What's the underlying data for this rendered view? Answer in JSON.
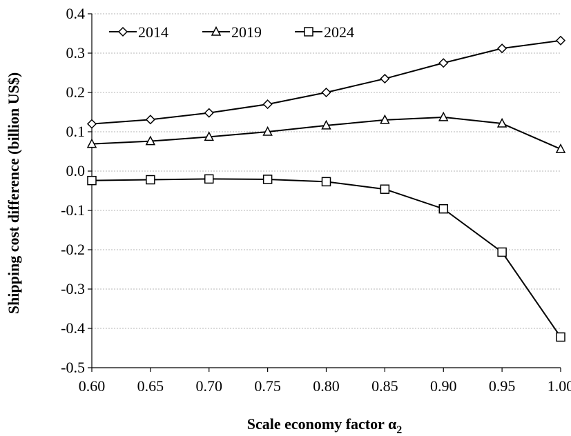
{
  "chart_data": {
    "type": "line",
    "xlabel": "Scale economy factor α",
    "xlabel_sub": "2",
    "ylabel": "Shipping cost difference (billion US$)",
    "xlim": [
      0.6,
      1.0
    ],
    "ylim": [
      -0.5,
      0.4
    ],
    "x_ticks": [
      "0.60",
      "0.65",
      "0.70",
      "0.75",
      "0.80",
      "0.85",
      "0.90",
      "0.95",
      "1.00"
    ],
    "y_ticks": [
      "-0.5",
      "-0.4",
      "-0.3",
      "-0.2",
      "-0.1",
      "0.0",
      "0.1",
      "0.2",
      "0.3",
      "0.4"
    ],
    "grid": "horizontal",
    "legend": "top-left",
    "x": [
      0.6,
      0.65,
      0.7,
      0.75,
      0.8,
      0.85,
      0.9,
      0.95,
      1.0
    ],
    "series": [
      {
        "name": "2014",
        "marker": "diamond",
        "values": [
          0.12,
          0.131,
          0.148,
          0.17,
          0.2,
          0.235,
          0.275,
          0.312,
          0.332
        ]
      },
      {
        "name": "2019",
        "marker": "triangle",
        "values": [
          0.069,
          0.076,
          0.087,
          0.1,
          0.116,
          0.13,
          0.137,
          0.121,
          0.056
        ]
      },
      {
        "name": "2024",
        "marker": "square",
        "values": [
          -0.024,
          -0.022,
          -0.02,
          -0.021,
          -0.027,
          -0.046,
          -0.096,
          -0.206,
          -0.422
        ]
      }
    ]
  }
}
